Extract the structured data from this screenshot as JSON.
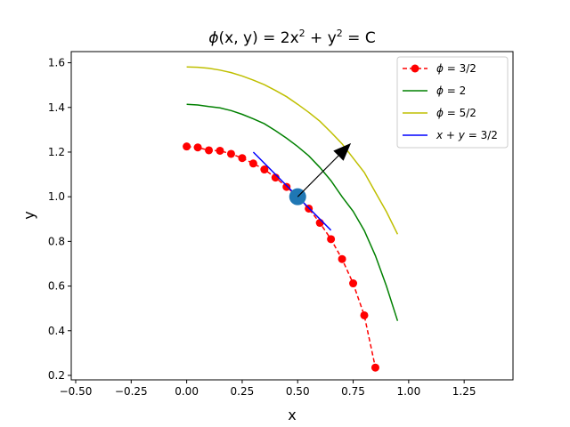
{
  "chart_data": {
    "type": "line",
    "title": {
      "phi": "ϕ",
      "args": "(x, y) = 2x",
      "sup1": "2",
      "plus": " + y",
      "sup2": "2",
      "rest": " = C"
    },
    "xlabel": "x",
    "ylabel": "y",
    "xlim": [
      -0.52,
      1.47
    ],
    "ylim": [
      0.18,
      1.65
    ],
    "xticks": [
      -0.5,
      -0.25,
      0.0,
      0.25,
      0.5,
      0.75,
      1.0,
      1.25
    ],
    "xtick_labels": [
      "−0.50",
      "−0.25",
      "0.00",
      "0.25",
      "0.50",
      "0.75",
      "1.00",
      "1.25"
    ],
    "yticks": [
      0.2,
      0.4,
      0.6,
      0.8,
      1.0,
      1.2,
      1.4,
      1.6
    ],
    "ytick_labels": [
      "0.2",
      "0.4",
      "0.6",
      "0.8",
      "1.0",
      "1.2",
      "1.4",
      "1.6"
    ],
    "grid": false,
    "legend_position": "top-right",
    "series": [
      {
        "name": "ϕ = 3/2",
        "label_html": {
          "sym": "ϕ",
          "rest": " = 3/2"
        },
        "color": "#ff0000",
        "style": "dashed",
        "marker": "circle",
        "x": [
          0.0,
          0.05,
          0.1,
          0.15,
          0.2,
          0.25,
          0.3,
          0.35,
          0.4,
          0.45,
          0.5,
          0.55,
          0.6,
          0.65,
          0.7,
          0.75,
          0.8,
          0.85
        ],
        "y": [
          1.225,
          1.221,
          1.208,
          1.206,
          1.192,
          1.173,
          1.149,
          1.122,
          1.086,
          1.044,
          1.0,
          0.947,
          0.883,
          0.81,
          0.721,
          0.612,
          0.469,
          0.235
        ]
      },
      {
        "name": "ϕ = 2",
        "label_html": {
          "sym": "ϕ",
          "rest": " = 2"
        },
        "color": "#008000",
        "style": "solid",
        "marker": "none",
        "x": [
          0.0,
          0.05,
          0.1,
          0.15,
          0.2,
          0.25,
          0.3,
          0.35,
          0.4,
          0.45,
          0.5,
          0.55,
          0.6,
          0.65,
          0.7,
          0.75,
          0.8,
          0.85,
          0.9,
          0.95
        ],
        "y": [
          1.414,
          1.411,
          1.404,
          1.398,
          1.386,
          1.369,
          1.349,
          1.327,
          1.296,
          1.262,
          1.225,
          1.183,
          1.131,
          1.072,
          1.0,
          0.935,
          0.849,
          0.736,
          0.6,
          0.444
        ]
      },
      {
        "name": "ϕ = 5/2",
        "label_html": {
          "sym": "ϕ",
          "rest": " = 5/2"
        },
        "color": "#bfbf00",
        "style": "solid",
        "marker": "none",
        "x": [
          0.0,
          0.05,
          0.1,
          0.15,
          0.2,
          0.25,
          0.3,
          0.35,
          0.4,
          0.45,
          0.5,
          0.55,
          0.6,
          0.65,
          0.7,
          0.75,
          0.8,
          0.85,
          0.9,
          0.95
        ],
        "y": [
          1.581,
          1.58,
          1.575,
          1.567,
          1.556,
          1.541,
          1.522,
          1.502,
          1.476,
          1.448,
          1.414,
          1.378,
          1.338,
          1.289,
          1.237,
          1.173,
          1.109,
          1.02,
          0.933,
          0.832
        ]
      },
      {
        "name": "x + y = 3/2",
        "label_html": {
          "sym": "x",
          "rest": " + ",
          "sym2": "y",
          "rest2": " = 3/2"
        },
        "color": "#0000ff",
        "style": "solid",
        "marker": "none",
        "x": [
          0.3,
          0.65
        ],
        "y": [
          1.2,
          0.85
        ]
      }
    ],
    "annotations": {
      "point": {
        "x": 0.5,
        "y": 1.0,
        "color": "#1f77b4"
      },
      "arrow": {
        "x0": 0.5,
        "y0": 1.0,
        "x1": 0.74,
        "y1": 1.24,
        "color": "#000000"
      }
    }
  }
}
